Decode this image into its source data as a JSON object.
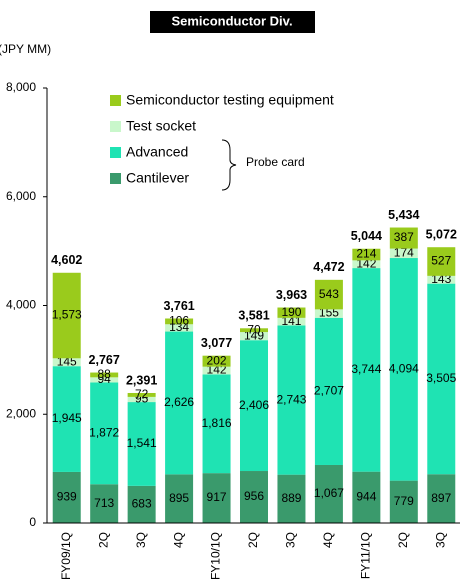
{
  "chart_data": {
    "type": "stacked_bar",
    "title": "Semiconductor Div.",
    "y_axis_label": "(JPY MM)",
    "categories": [
      "FY09/1Q",
      "2Q",
      "3Q",
      "4Q",
      "FY10/1Q",
      "2Q",
      "3Q",
      "4Q",
      "FY11/1Q",
      "2Q",
      "3Q"
    ],
    "series": [
      {
        "name": "Cantilever",
        "color": "#3a9a6c",
        "values": [
          939,
          713,
          683,
          895,
          917,
          956,
          889,
          1067,
          944,
          779,
          897
        ],
        "value_labels": [
          "939",
          "713",
          "683",
          "895",
          "917",
          "956",
          "889",
          "1,067",
          "944",
          "779",
          "897"
        ]
      },
      {
        "name": "Advanced",
        "color": "#1fe3b3",
        "values": [
          1945,
          1872,
          1541,
          2626,
          1816,
          2406,
          2743,
          2707,
          3744,
          4094,
          3505
        ],
        "value_labels": [
          "1,945",
          "1,872",
          "1,541",
          "2,626",
          "1,816",
          "2,406",
          "2,743",
          "2,707",
          "3,744",
          "4,094",
          "3,505"
        ]
      },
      {
        "name": "Test socket",
        "color": "#c9f7cb",
        "values": [
          145,
          94,
          95,
          134,
          142,
          149,
          141,
          155,
          142,
          174,
          143
        ]
      },
      {
        "name": "Semiconductor testing equipment",
        "color": "#9acb1c",
        "values": [
          1573,
          88,
          72,
          106,
          202,
          70,
          190,
          543,
          214,
          387,
          527
        ],
        "value_labels": [
          "1,573",
          "88",
          "72",
          "106",
          "202",
          "70",
          "190",
          "543",
          "214",
          "387",
          "527"
        ]
      }
    ],
    "totals": [
      4602,
      2767,
      2391,
      3761,
      3077,
      3581,
      3963,
      4472,
      5044,
      5434,
      5072
    ],
    "total_labels": [
      "4,602",
      "2,767",
      "2,391",
      "3,761",
      "3,077",
      "3,581",
      "3,963",
      "4,472",
      "5,044",
      "5,434",
      "5,072"
    ],
    "annotation": "Probe card",
    "ylim": [
      0,
      8000
    ],
    "yticks": [
      0,
      {
        "value": 2000,
        "label": "2,000"
      },
      {
        "value": 4000,
        "label": "4,000"
      },
      {
        "value": 6000,
        "label": "6,000"
      },
      {
        "value": 8000,
        "label": "8,000"
      }
    ]
  }
}
